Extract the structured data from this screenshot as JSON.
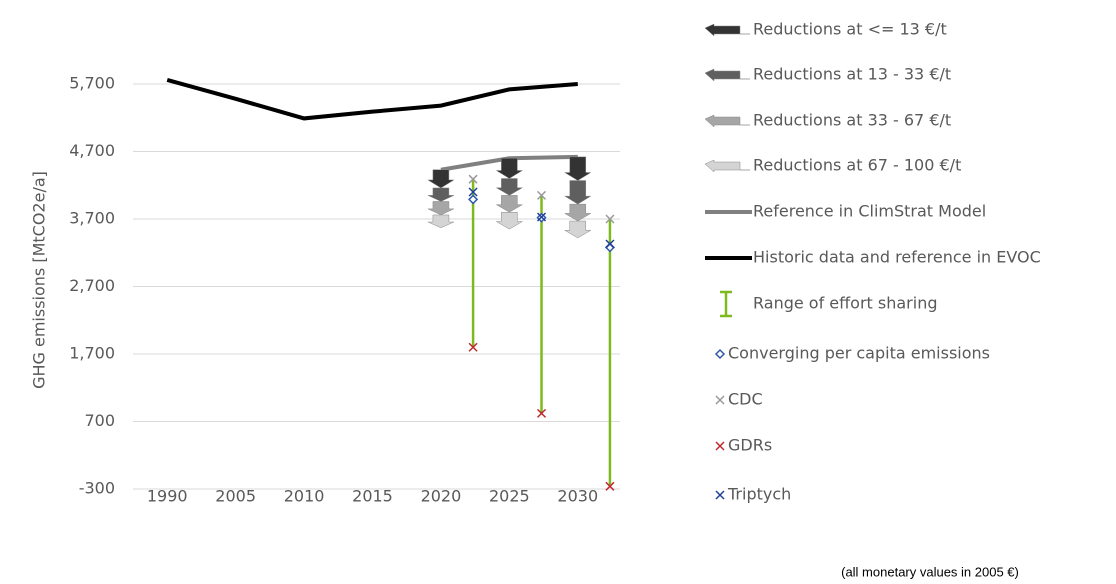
{
  "chart_data": {
    "type": "line",
    "y_label": "GHG emissions  [MtCO2e/a]",
    "note": "(all monetary values in 2005 €)",
    "categories": [
      "1990",
      "2005",
      "2010",
      "2015",
      "2020",
      "2025",
      "2030"
    ],
    "ylim": [
      -300,
      5900
    ],
    "yticks": [
      {
        "value": -300,
        "label": "-300"
      },
      {
        "value": 700,
        "label": "700"
      },
      {
        "value": 1700,
        "label": "1,700"
      },
      {
        "value": 2700,
        "label": "2,700"
      },
      {
        "value": 3700,
        "label": "3,700"
      },
      {
        "value": 4700,
        "label": "4,700"
      },
      {
        "value": 5700,
        "label": "5,700"
      }
    ],
    "grid": true,
    "series": [
      {
        "name": "Reductions at <= 13 €/t",
        "type": "arrow",
        "color": "#333333",
        "values": [
          null,
          null,
          null,
          null,
          270,
          300,
          350
        ]
      },
      {
        "name": "Reductions at 13 - 33 €/t",
        "type": "arrow",
        "color": "#5f5f5f",
        "values": [
          null,
          null,
          null,
          null,
          200,
          250,
          350
        ]
      },
      {
        "name": "Reductions at 33 - 67 €/t",
        "type": "arrow",
        "color": "#a6a6a6",
        "values": [
          null,
          null,
          null,
          null,
          200,
          250,
          250
        ]
      },
      {
        "name": "Reductions at 67 - 100 €/t",
        "type": "arrow",
        "color": "#d4d4d4",
        "values": [
          null,
          null,
          null,
          null,
          190,
          250,
          250
        ]
      },
      {
        "name": "Reference in ClimStrat Model",
        "type": "line",
        "color": "#808080",
        "values": [
          null,
          null,
          null,
          null,
          4430,
          4600,
          4620
        ]
      },
      {
        "name": "Historic data and reference in EVOC",
        "type": "line",
        "color": "#000000",
        "values": [
          5760,
          5480,
          5190,
          5290,
          5380,
          5620,
          5700
        ]
      },
      {
        "name": "Range of effort sharing",
        "type": "range",
        "color": "#7dba1f",
        "values": [
          null,
          null,
          null,
          null,
          1800,
          820,
          -260
        ],
        "high": [
          null,
          null,
          null,
          null,
          4290,
          4050,
          3700
        ]
      },
      {
        "name": "Converging per capita emissions",
        "type": "marker",
        "marker": "diamond",
        "color": "#2e5aa8",
        "values": [
          null,
          null,
          null,
          null,
          3990,
          3720,
          3280
        ]
      },
      {
        "name": "CDC",
        "type": "marker",
        "marker": "x",
        "color": "#999999",
        "values": [
          null,
          null,
          null,
          null,
          4290,
          4050,
          3700
        ]
      },
      {
        "name": "GDRs",
        "type": "marker",
        "marker": "x",
        "color": "#c0282d",
        "values": [
          null,
          null,
          null,
          null,
          1800,
          820,
          -260
        ]
      },
      {
        "name": "Triptych",
        "type": "marker",
        "marker": "x",
        "color": "#1f3f9a",
        "values": [
          null,
          null,
          null,
          null,
          4100,
          3730,
          3330
        ]
      }
    ]
  }
}
